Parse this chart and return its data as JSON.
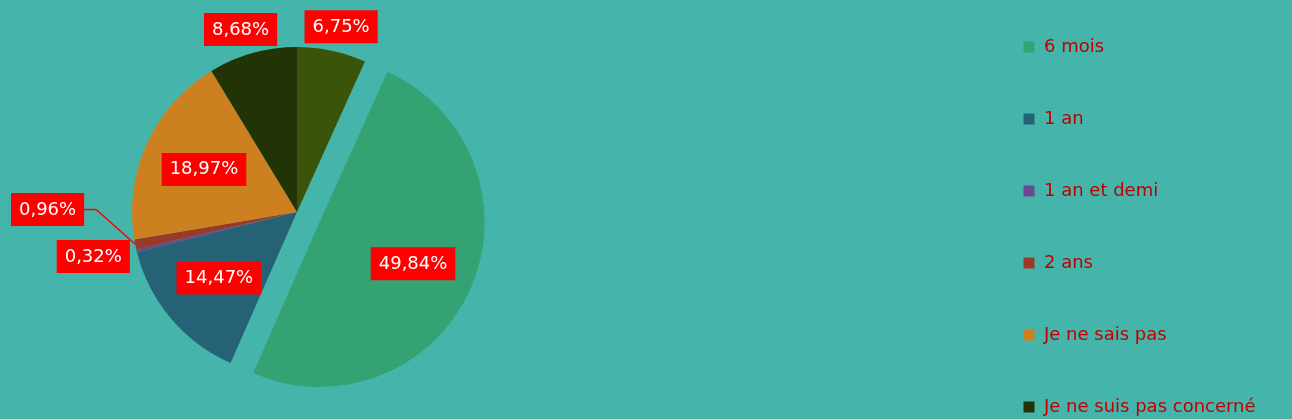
{
  "chart_data": {
    "type": "pie",
    "categories": [
      "6 mois",
      "1 an",
      "1 an et demi",
      "2 ans",
      "Je ne sais pas",
      "Je ne suis pas concerné",
      null
    ],
    "values": [
      49.84,
      14.47,
      0.32,
      0.96,
      18.97,
      8.68,
      6.75
    ],
    "colors": [
      "#34a273",
      "#256275",
      "#6a4a8f",
      "#9a3a26",
      "#cd8020",
      "#223305",
      "#3a550a"
    ],
    "value_labels": [
      "49,84%",
      "14,47%",
      "0,32%",
      "0,96%",
      "18,97%",
      "8,68%",
      "6,75%"
    ],
    "legend": "right"
  }
}
